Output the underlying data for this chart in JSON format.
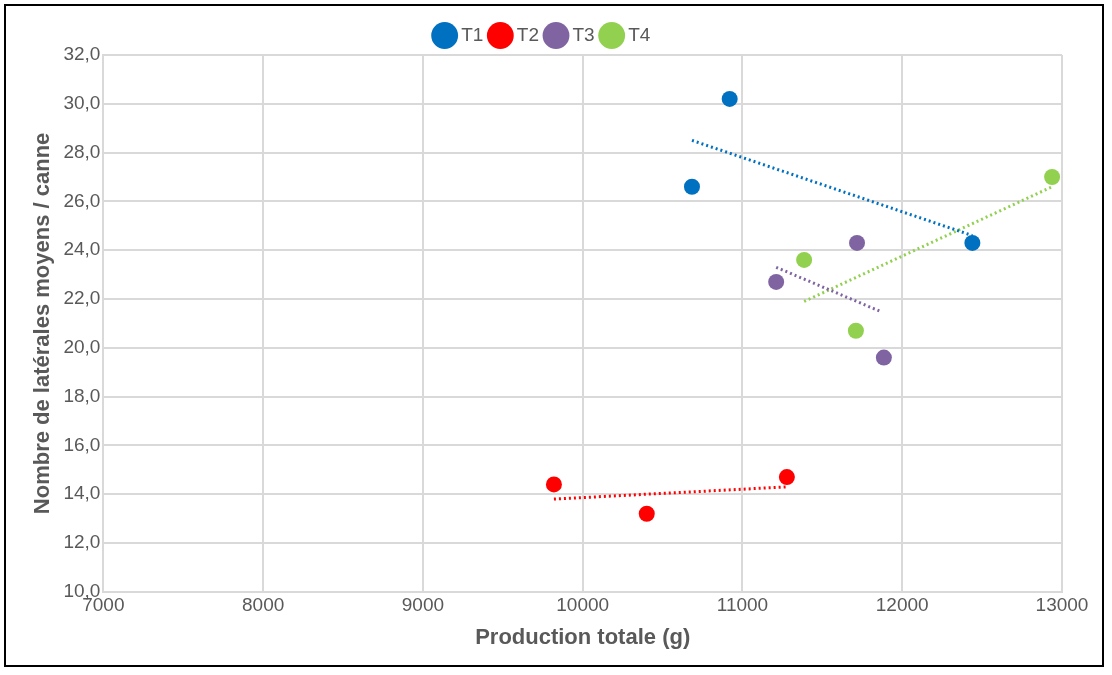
{
  "chart_data": {
    "type": "scatter",
    "xlabel": "Production totale (g)",
    "ylabel": "Nombre de latérales moyens / canne",
    "xlim": [
      7000,
      13000
    ],
    "xticks": [
      7000,
      8000,
      9000,
      10000,
      11000,
      12000,
      13000
    ],
    "ylim": [
      10,
      32
    ],
    "yticks": [
      {
        "value": 10,
        "label": "10,0"
      },
      {
        "value": 12,
        "label": "12,0"
      },
      {
        "value": 14,
        "label": "14,0"
      },
      {
        "value": 16,
        "label": "16,0"
      },
      {
        "value": 18,
        "label": "18,0"
      },
      {
        "value": 20,
        "label": "20,0"
      },
      {
        "value": 22,
        "label": "22,0"
      },
      {
        "value": 24,
        "label": "24,0"
      },
      {
        "value": 26,
        "label": "26,0"
      },
      {
        "value": 28,
        "label": "28,0"
      },
      {
        "value": 30,
        "label": "30,0"
      },
      {
        "value": 32,
        "label": "32,0"
      }
    ],
    "grid": true,
    "legend": "top",
    "marker": "circle",
    "series": [
      {
        "name": "T1",
        "color": "#0070c0",
        "x": [
          10684,
          10920,
          12439
        ],
        "values": [
          26.6,
          30.2,
          24.3
        ]
      },
      {
        "name": "T2",
        "color": "#ff0000",
        "x": [
          9820,
          10401,
          11278
        ],
        "values": [
          14.4,
          13.2,
          14.7
        ]
      },
      {
        "name": "T3",
        "color": "#8064a2",
        "x": [
          11211,
          11717,
          11885
        ],
        "values": [
          22.7,
          24.3,
          19.6
        ]
      },
      {
        "name": "T4",
        "color": "#92d050",
        "x": [
          11386,
          11710,
          12938
        ],
        "values": [
          23.6,
          20.7,
          27.0
        ]
      },
      {
        "type": "line",
        "line_style": "dotted",
        "marker": "none",
        "color": "#0070c0",
        "x": [
          10684,
          12439
        ],
        "values": [
          28.5,
          24.6
        ]
      },
      {
        "type": "line",
        "line_style": "dotted",
        "marker": "none",
        "color": "#ff0000",
        "x": [
          9820,
          11278
        ],
        "values": [
          13.8,
          14.3
        ]
      },
      {
        "type": "line",
        "line_style": "dotted",
        "marker": "none",
        "color": "#8064a2",
        "x": [
          11211,
          11860
        ],
        "values": [
          23.3,
          21.5
        ]
      },
      {
        "type": "line",
        "line_style": "dotted",
        "marker": "none",
        "color": "#92d050",
        "x": [
          11386,
          12938
        ],
        "values": [
          21.9,
          26.6
        ]
      }
    ]
  }
}
